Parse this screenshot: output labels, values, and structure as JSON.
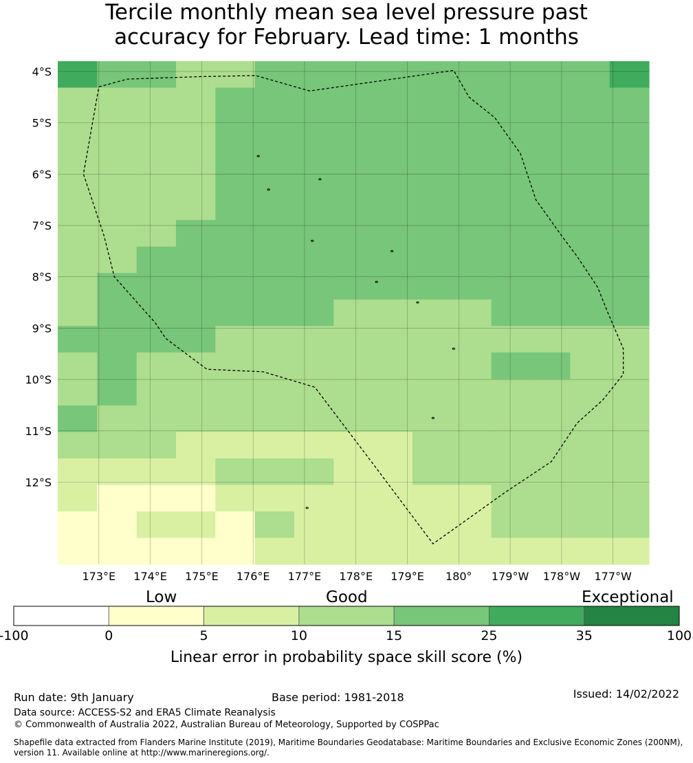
{
  "title": {
    "line1": "Tercile monthly mean sea level pressure past",
    "line2": "accuracy for February. Lead time: 1 months"
  },
  "map": {
    "lat_labels": [
      "4°S",
      "5°S",
      "6°S",
      "7°S",
      "8°S",
      "9°S",
      "10°S",
      "11°S",
      "12°S"
    ],
    "lon_labels": [
      "173°E",
      "174°E",
      "175°E",
      "176°E",
      "177°E",
      "178°E",
      "179°E",
      "180°",
      "179°W",
      "178°W",
      "177°W"
    ],
    "lon_range_east_deg": [
      172.2,
      183.7
    ],
    "lat_range_deg": [
      -3.8,
      -13.6
    ],
    "grid_lat_deg": [
      -4,
      -5,
      -6,
      -7,
      -8,
      -9,
      -10,
      -11,
      -12
    ],
    "grid_lon_east_deg": [
      173,
      174,
      175,
      176,
      177,
      178,
      179,
      180,
      181,
      182,
      183
    ],
    "cells": [
      [
        5,
        4,
        4,
        3,
        3,
        4,
        4,
        4,
        4,
        4,
        4,
        4,
        4,
        4,
        5
      ],
      [
        3,
        3,
        3,
        3,
        4,
        4,
        4,
        4,
        4,
        4,
        4,
        4,
        4,
        4,
        4
      ],
      [
        3,
        3,
        3,
        3,
        4,
        4,
        4,
        4,
        4,
        4,
        4,
        4,
        4,
        4,
        4
      ],
      [
        3,
        3,
        3,
        3,
        4,
        4,
        4,
        4,
        4,
        4,
        4,
        4,
        4,
        4,
        4
      ],
      [
        3,
        3,
        3,
        3,
        4,
        4,
        4,
        4,
        4,
        4,
        4,
        4,
        4,
        4,
        4
      ],
      [
        3,
        3,
        3,
        3,
        4,
        4,
        4,
        4,
        4,
        4,
        4,
        4,
        4,
        4,
        4
      ],
      [
        3,
        3,
        3,
        4,
        4,
        4,
        4,
        4,
        4,
        4,
        4,
        4,
        4,
        4,
        4
      ],
      [
        3,
        3,
        4,
        4,
        4,
        4,
        4,
        4,
        4,
        4,
        4,
        4,
        4,
        4,
        4
      ],
      [
        3,
        4,
        4,
        4,
        4,
        4,
        4,
        4,
        4,
        4,
        4,
        4,
        4,
        4,
        4
      ],
      [
        3,
        4,
        4,
        4,
        4,
        4,
        4,
        3,
        3,
        3,
        3,
        4,
        4,
        4,
        4
      ],
      [
        4,
        4,
        4,
        4,
        3,
        3,
        3,
        3,
        3,
        3,
        3,
        3,
        3,
        3,
        3
      ],
      [
        3,
        4,
        3,
        3,
        3,
        3,
        3,
        3,
        3,
        3,
        3,
        4,
        4,
        3,
        3
      ],
      [
        3,
        4,
        3,
        3,
        3,
        3,
        3,
        3,
        3,
        3,
        3,
        3,
        3,
        3,
        3
      ],
      [
        4,
        3,
        3,
        3,
        3,
        3,
        3,
        3,
        3,
        3,
        3,
        3,
        3,
        3,
        3
      ],
      [
        3,
        3,
        3,
        2,
        2,
        2,
        2,
        2,
        2,
        3,
        3,
        3,
        3,
        3,
        3
      ],
      [
        2,
        2,
        2,
        2,
        3,
        3,
        3,
        2,
        2,
        3,
        3,
        3,
        3,
        3,
        3
      ],
      [
        2,
        1,
        1,
        1,
        2,
        2,
        2,
        2,
        2,
        2,
        2,
        3,
        3,
        3,
        3
      ],
      [
        1,
        1,
        2,
        2,
        1,
        3,
        2,
        2,
        2,
        2,
        2,
        3,
        3,
        3,
        3
      ],
      [
        1,
        1,
        1,
        1,
        1,
        2,
        2,
        2,
        2,
        2,
        2,
        2,
        2,
        2,
        2
      ]
    ],
    "eez_boundary_deg": [
      [
        173.0,
        -4.3
      ],
      [
        173.55,
        -4.15
      ],
      [
        175.0,
        -4.1
      ],
      [
        176.05,
        -4.08
      ],
      [
        177.1,
        -4.38
      ],
      [
        179.9,
        -3.98
      ],
      [
        180.2,
        -4.5
      ],
      [
        180.7,
        -4.9
      ],
      [
        181.2,
        -5.6
      ],
      [
        181.5,
        -6.5
      ],
      [
        182.0,
        -7.2
      ],
      [
        182.3,
        -7.6
      ],
      [
        182.7,
        -8.2
      ],
      [
        182.9,
        -8.7
      ],
      [
        183.2,
        -9.4
      ],
      [
        183.2,
        -9.9
      ],
      [
        182.8,
        -10.4
      ],
      [
        182.3,
        -10.85
      ],
      [
        181.8,
        -11.6
      ],
      [
        180.9,
        -12.2
      ],
      [
        179.5,
        -13.2
      ],
      [
        178.3,
        -11.6
      ],
      [
        177.2,
        -10.15
      ],
      [
        176.2,
        -9.85
      ],
      [
        175.1,
        -9.8
      ],
      [
        174.3,
        -9.2
      ],
      [
        174.1,
        -8.9
      ],
      [
        173.3,
        -8.0
      ],
      [
        173.1,
        -7.2
      ],
      [
        172.7,
        -6.0
      ],
      [
        173.0,
        -4.3
      ]
    ],
    "islands_deg": [
      [
        176.1,
        -5.65
      ],
      [
        176.3,
        -6.3
      ],
      [
        177.3,
        -6.1
      ],
      [
        177.15,
        -7.3
      ],
      [
        178.7,
        -7.5
      ],
      [
        178.4,
        -8.1
      ],
      [
        179.2,
        -8.5
      ],
      [
        179.9,
        -9.4
      ],
      [
        179.5,
        -10.75
      ],
      [
        177.05,
        -12.5
      ]
    ]
  },
  "colorbar": {
    "categories": [
      "Low",
      "Good",
      "Exceptional"
    ],
    "bins": [
      "-100",
      "0",
      "5",
      "10",
      "15",
      "25",
      "35",
      "100"
    ],
    "colors": [
      "#ffffff",
      "#ffffcc",
      "#d9f0a3",
      "#addd8e",
      "#78c679",
      "#41ab5d",
      "#238443"
    ],
    "label": "Linear error in probability space skill score (%)"
  },
  "footer": {
    "run_date": "Run date: 9th January",
    "base_period": "Base period: 1981-2018",
    "issued": "Issued: 14/02/2022",
    "data_source": "Data source: ACCESS-S2 and ERA5 Climate Reanalysis",
    "copyright": "© Commonwealth of Australia 2022, Australian Bureau of Meteorology, Supported by COSPPac",
    "shapefile_line1": "Shapefile data extracted from Flanders Marine Institute (2019), Maritime Boundaries Geodatabase: Maritime Boundaries and Exclusive Economic Zones (200NM),",
    "shapefile_line2": "version 11. Available online at http://www.marineregions.org/."
  }
}
